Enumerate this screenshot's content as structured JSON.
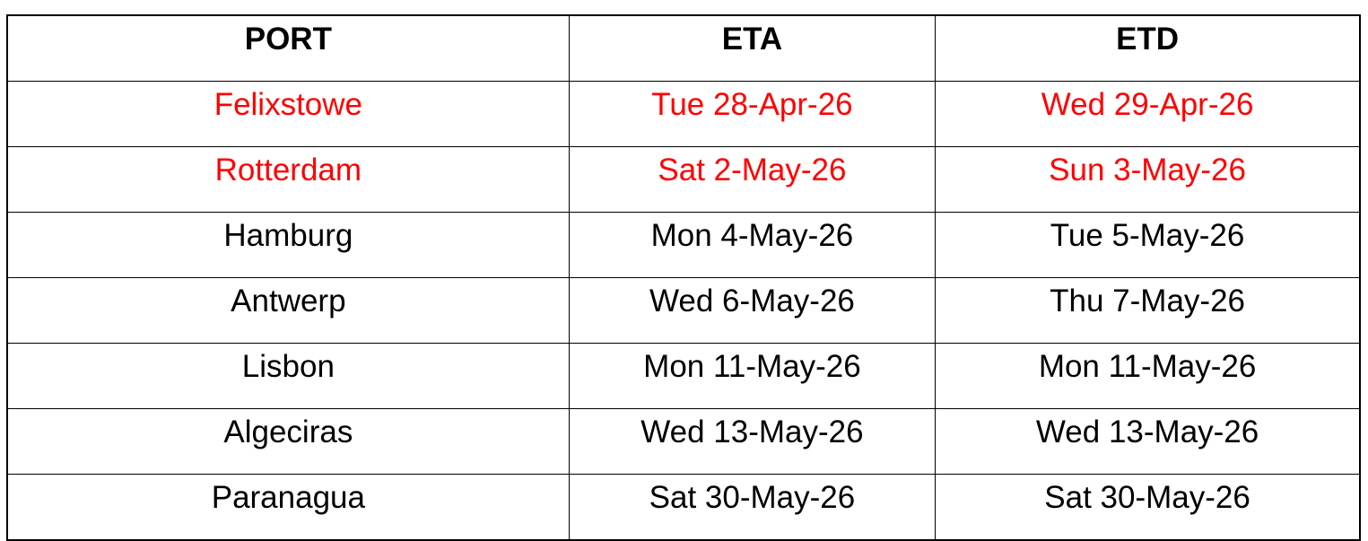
{
  "table": {
    "headers": [
      "PORT",
      "ETA",
      "ETD"
    ],
    "highlight_color": "#ff0000",
    "rows": [
      {
        "port": "Felixstowe",
        "eta": "Tue 28-Apr-26",
        "etd": "Wed 29-Apr-26",
        "highlighted": true
      },
      {
        "port": "Rotterdam",
        "eta": "Sat 2-May-26",
        "etd": "Sun 3-May-26",
        "highlighted": true
      },
      {
        "port": "Hamburg",
        "eta": "Mon 4-May-26",
        "etd": "Tue 5-May-26",
        "highlighted": false
      },
      {
        "port": "Antwerp",
        "eta": "Wed 6-May-26",
        "etd": "Thu 7-May-26",
        "highlighted": false
      },
      {
        "port": "Lisbon",
        "eta": "Mon 11-May-26",
        "etd": "Mon 11-May-26",
        "highlighted": false
      },
      {
        "port": "Algeciras",
        "eta": "Wed 13-May-26",
        "etd": "Wed 13-May-26",
        "highlighted": false
      },
      {
        "port": "Paranagua",
        "eta": "Sat 30-May-26",
        "etd": "Sat 30-May-26",
        "highlighted": false
      }
    ]
  }
}
